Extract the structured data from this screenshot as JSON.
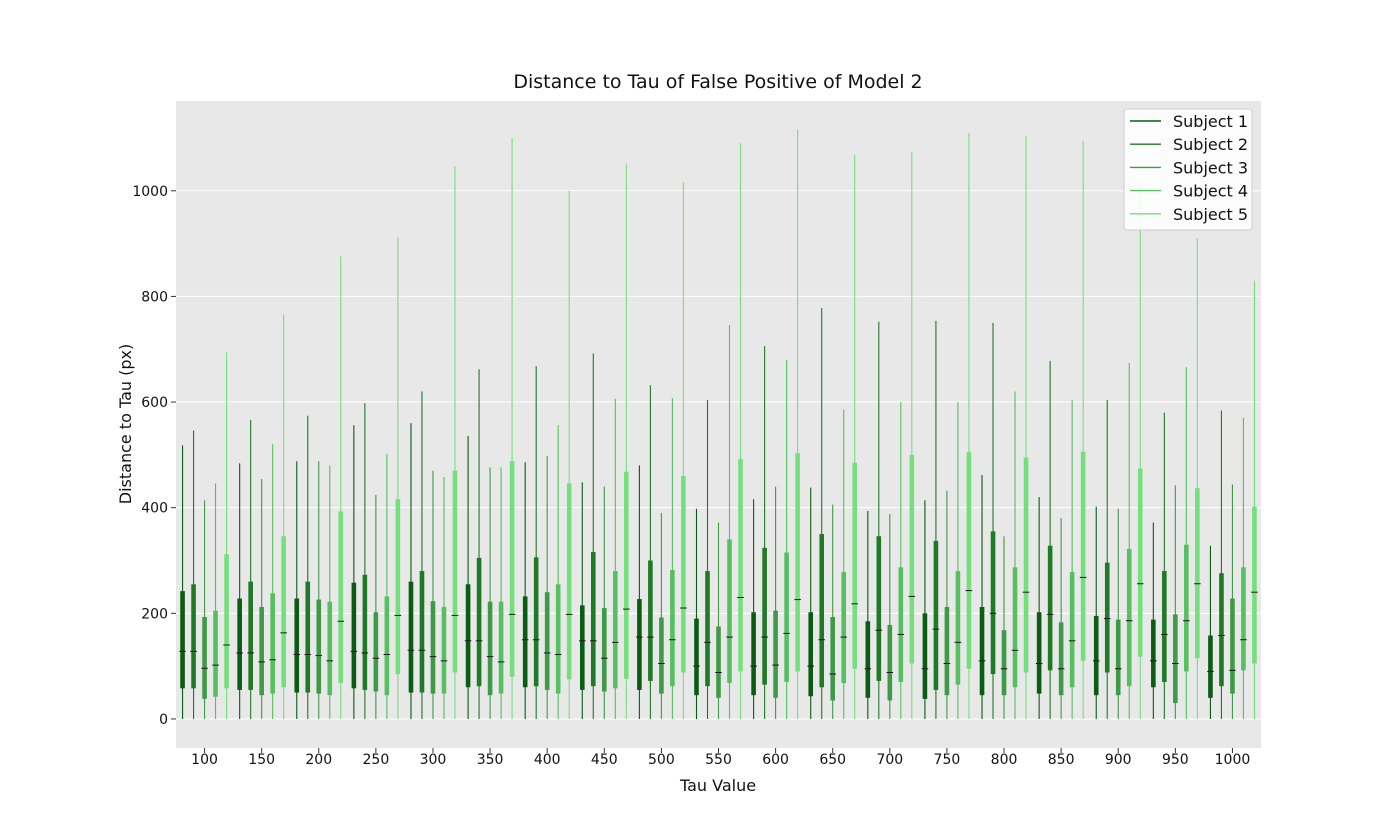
{
  "chart_data": {
    "type": "box",
    "title": "Distance to Tau of False Positive of Model 2",
    "xlabel": "Tau Value",
    "ylabel": "Distance to Tau (px)",
    "ylim": [
      -55,
      1170
    ],
    "yticks": [
      0,
      200,
      400,
      600,
      800,
      1000
    ],
    "grid": true,
    "legend_position": "top-right",
    "background": "#e8e8e8",
    "categories": [
      "100",
      "150",
      "200",
      "250",
      "300",
      "350",
      "400",
      "450",
      "500",
      "550",
      "600",
      "650",
      "700",
      "750",
      "800",
      "850",
      "900",
      "950",
      "1000"
    ],
    "series": [
      {
        "name": "Subject 1",
        "color": "#0a5c12",
        "boxes": [
          {
            "min": 0,
            "q1": 58,
            "median": 128,
            "q3": 242,
            "max": 518
          },
          {
            "min": 0,
            "q1": 55,
            "median": 125,
            "q3": 228,
            "max": 484
          },
          {
            "min": 0,
            "q1": 50,
            "median": 122,
            "q3": 228,
            "max": 488
          },
          {
            "min": 0,
            "q1": 58,
            "median": 128,
            "q3": 258,
            "max": 556
          },
          {
            "min": 0,
            "q1": 50,
            "median": 130,
            "q3": 260,
            "max": 560
          },
          {
            "min": 0,
            "q1": 60,
            "median": 148,
            "q3": 255,
            "max": 536
          },
          {
            "min": 0,
            "q1": 60,
            "median": 150,
            "q3": 232,
            "max": 486
          },
          {
            "min": 0,
            "q1": 55,
            "median": 148,
            "q3": 215,
            "max": 448
          },
          {
            "min": 0,
            "q1": 55,
            "median": 155,
            "q3": 227,
            "max": 480
          },
          {
            "min": 0,
            "q1": 45,
            "median": 100,
            "q3": 190,
            "max": 398
          },
          {
            "min": 0,
            "q1": 45,
            "median": 100,
            "q3": 202,
            "max": 416
          },
          {
            "min": 0,
            "q1": 43,
            "median": 100,
            "q3": 202,
            "max": 438
          },
          {
            "min": 0,
            "q1": 40,
            "median": 95,
            "q3": 185,
            "max": 394
          },
          {
            "min": 0,
            "q1": 38,
            "median": 95,
            "q3": 200,
            "max": 414
          },
          {
            "min": 0,
            "q1": 45,
            "median": 110,
            "q3": 212,
            "max": 462
          },
          {
            "min": 0,
            "q1": 48,
            "median": 105,
            "q3": 202,
            "max": 420
          },
          {
            "min": 0,
            "q1": 45,
            "median": 110,
            "q3": 195,
            "max": 402
          },
          {
            "min": 0,
            "q1": 60,
            "median": 110,
            "q3": 188,
            "max": 372
          },
          {
            "min": 0,
            "q1": 40,
            "median": 90,
            "q3": 158,
            "max": 328
          }
        ]
      },
      {
        "name": "Subject 2",
        "color": "#1e7a25",
        "boxes": [
          {
            "min": 0,
            "q1": 58,
            "median": 128,
            "q3": 255,
            "max": 546
          },
          {
            "min": 0,
            "q1": 55,
            "median": 125,
            "q3": 260,
            "max": 566
          },
          {
            "min": 0,
            "q1": 50,
            "median": 122,
            "q3": 260,
            "max": 574
          },
          {
            "min": 0,
            "q1": 55,
            "median": 125,
            "q3": 273,
            "max": 598
          },
          {
            "min": 0,
            "q1": 50,
            "median": 130,
            "q3": 280,
            "max": 620
          },
          {
            "min": 0,
            "q1": 62,
            "median": 148,
            "q3": 305,
            "max": 662
          },
          {
            "min": 0,
            "q1": 62,
            "median": 150,
            "q3": 306,
            "max": 668
          },
          {
            "min": 0,
            "q1": 62,
            "median": 148,
            "q3": 316,
            "max": 692
          },
          {
            "min": 0,
            "q1": 72,
            "median": 155,
            "q3": 300,
            "max": 632
          },
          {
            "min": 0,
            "q1": 62,
            "median": 145,
            "q3": 280,
            "max": 604
          },
          {
            "min": 0,
            "q1": 65,
            "median": 155,
            "q3": 324,
            "max": 706
          },
          {
            "min": 0,
            "q1": 60,
            "median": 150,
            "q3": 350,
            "max": 778
          },
          {
            "min": 0,
            "q1": 72,
            "median": 168,
            "q3": 346,
            "max": 752
          },
          {
            "min": 0,
            "q1": 55,
            "median": 170,
            "q3": 337,
            "max": 754
          },
          {
            "min": 0,
            "q1": 85,
            "median": 200,
            "q3": 355,
            "max": 750
          },
          {
            "min": 0,
            "q1": 92,
            "median": 198,
            "q3": 328,
            "max": 678
          },
          {
            "min": 0,
            "q1": 88,
            "median": 190,
            "q3": 296,
            "max": 604
          },
          {
            "min": 0,
            "q1": 70,
            "median": 160,
            "q3": 280,
            "max": 580
          },
          {
            "min": 0,
            "q1": 62,
            "median": 158,
            "q3": 276,
            "max": 584
          }
        ]
      },
      {
        "name": "Subject 3",
        "color": "#3f9a47",
        "boxes": [
          {
            "min": 0,
            "q1": 38,
            "median": 96,
            "q3": 193,
            "max": 414
          },
          {
            "min": 0,
            "q1": 45,
            "median": 108,
            "q3": 212,
            "max": 454
          },
          {
            "min": 0,
            "q1": 48,
            "median": 120,
            "q3": 226,
            "max": 488
          },
          {
            "min": 0,
            "q1": 52,
            "median": 115,
            "q3": 202,
            "max": 424
          },
          {
            "min": 0,
            "q1": 48,
            "median": 118,
            "q3": 223,
            "max": 470
          },
          {
            "min": 0,
            "q1": 45,
            "median": 118,
            "q3": 222,
            "max": 476
          },
          {
            "min": 0,
            "q1": 55,
            "median": 125,
            "q3": 240,
            "max": 498
          },
          {
            "min": 0,
            "q1": 52,
            "median": 115,
            "q3": 210,
            "max": 440
          },
          {
            "min": 0,
            "q1": 48,
            "median": 105,
            "q3": 192,
            "max": 390
          },
          {
            "min": 0,
            "q1": 40,
            "median": 88,
            "q3": 175,
            "max": 372
          },
          {
            "min": 0,
            "q1": 40,
            "median": 102,
            "q3": 205,
            "max": 440
          },
          {
            "min": 0,
            "q1": 35,
            "median": 85,
            "q3": 193,
            "max": 406
          },
          {
            "min": 0,
            "q1": 35,
            "median": 88,
            "q3": 178,
            "max": 388
          },
          {
            "min": 0,
            "q1": 45,
            "median": 105,
            "q3": 212,
            "max": 432
          },
          {
            "min": 0,
            "q1": 45,
            "median": 95,
            "q3": 168,
            "max": 346
          },
          {
            "min": 0,
            "q1": 45,
            "median": 95,
            "q3": 183,
            "max": 380
          },
          {
            "min": 0,
            "q1": 45,
            "median": 95,
            "q3": 188,
            "max": 398
          },
          {
            "min": 0,
            "q1": 30,
            "median": 105,
            "q3": 198,
            "max": 442
          },
          {
            "min": 0,
            "q1": 48,
            "median": 92,
            "q3": 228,
            "max": 444
          }
        ]
      },
      {
        "name": "Subject 4",
        "color": "#55c060",
        "boxes": [
          {
            "min": 0,
            "q1": 42,
            "median": 102,
            "q3": 205,
            "max": 446
          },
          {
            "min": 0,
            "q1": 48,
            "median": 112,
            "q3": 238,
            "max": 520
          },
          {
            "min": 0,
            "q1": 45,
            "median": 110,
            "q3": 222,
            "max": 480
          },
          {
            "min": 0,
            "q1": 45,
            "median": 122,
            "q3": 232,
            "max": 502
          },
          {
            "min": 0,
            "q1": 48,
            "median": 110,
            "q3": 212,
            "max": 458
          },
          {
            "min": 0,
            "q1": 48,
            "median": 108,
            "q3": 222,
            "max": 476
          },
          {
            "min": 0,
            "q1": 48,
            "median": 122,
            "q3": 255,
            "max": 556
          },
          {
            "min": 0,
            "q1": 58,
            "median": 145,
            "q3": 280,
            "max": 606
          },
          {
            "min": 0,
            "q1": 62,
            "median": 150,
            "q3": 282,
            "max": 608
          },
          {
            "min": 0,
            "q1": 68,
            "median": 155,
            "q3": 340,
            "max": 746
          },
          {
            "min": 0,
            "q1": 70,
            "median": 162,
            "q3": 315,
            "max": 680
          },
          {
            "min": 0,
            "q1": 68,
            "median": 155,
            "q3": 278,
            "max": 586
          },
          {
            "min": 0,
            "q1": 70,
            "median": 160,
            "q3": 287,
            "max": 600
          },
          {
            "min": 0,
            "q1": 65,
            "median": 145,
            "q3": 280,
            "max": 600
          },
          {
            "min": 0,
            "q1": 60,
            "median": 130,
            "q3": 287,
            "max": 620
          },
          {
            "min": 0,
            "q1": 60,
            "median": 148,
            "q3": 278,
            "max": 604
          },
          {
            "min": 0,
            "q1": 62,
            "median": 186,
            "q3": 322,
            "max": 674
          },
          {
            "min": 0,
            "q1": 90,
            "median": 186,
            "q3": 330,
            "max": 666
          },
          {
            "min": 0,
            "q1": 92,
            "median": 150,
            "q3": 287,
            "max": 570
          }
        ]
      },
      {
        "name": "Subject 5",
        "color": "#74e07c",
        "boxes": [
          {
            "min": 0,
            "q1": 58,
            "median": 140,
            "q3": 312,
            "max": 694
          },
          {
            "min": 0,
            "q1": 60,
            "median": 163,
            "q3": 346,
            "max": 766
          },
          {
            "min": 0,
            "q1": 68,
            "median": 185,
            "q3": 393,
            "max": 876
          },
          {
            "min": 0,
            "q1": 85,
            "median": 196,
            "q3": 416,
            "max": 912
          },
          {
            "min": 0,
            "q1": 88,
            "median": 196,
            "q3": 470,
            "max": 1046
          },
          {
            "min": 0,
            "q1": 80,
            "median": 198,
            "q3": 488,
            "max": 1100
          },
          {
            "min": 0,
            "q1": 75,
            "median": 198,
            "q3": 446,
            "max": 1000
          },
          {
            "min": 0,
            "q1": 76,
            "median": 208,
            "q3": 468,
            "max": 1052
          },
          {
            "min": 0,
            "q1": 88,
            "median": 210,
            "q3": 460,
            "max": 1016
          },
          {
            "min": 0,
            "q1": 90,
            "median": 230,
            "q3": 492,
            "max": 1090
          },
          {
            "min": 0,
            "q1": 90,
            "median": 226,
            "q3": 503,
            "max": 1116
          },
          {
            "min": 0,
            "q1": 95,
            "median": 218,
            "q3": 485,
            "max": 1068
          },
          {
            "min": 0,
            "q1": 105,
            "median": 232,
            "q3": 500,
            "max": 1074
          },
          {
            "min": 0,
            "q1": 95,
            "median": 243,
            "q3": 505,
            "max": 1110
          },
          {
            "min": 0,
            "q1": 88,
            "median": 240,
            "q3": 495,
            "max": 1104
          },
          {
            "min": 0,
            "q1": 110,
            "median": 268,
            "q3": 506,
            "max": 1094
          },
          {
            "min": 0,
            "q1": 118,
            "median": 256,
            "q3": 474,
            "max": 1006
          },
          {
            "min": 0,
            "q1": 115,
            "median": 256,
            "q3": 437,
            "max": 910
          },
          {
            "min": 0,
            "q1": 105,
            "median": 240,
            "q3": 402,
            "max": 830
          }
        ]
      }
    ]
  }
}
